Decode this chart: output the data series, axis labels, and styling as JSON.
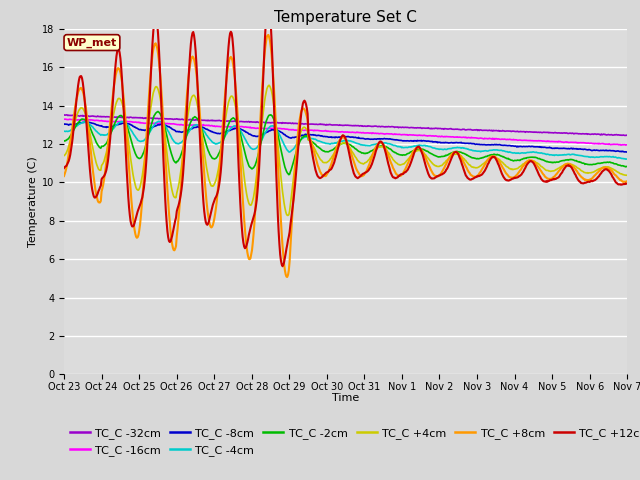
{
  "title": "Temperature Set C",
  "xlabel": "Time",
  "ylabel": "Temperature (C)",
  "ylim": [
    0,
    18
  ],
  "yticks": [
    0,
    2,
    4,
    6,
    8,
    10,
    12,
    14,
    16,
    18
  ],
  "x_labels": [
    "Oct 23",
    "Oct 24",
    "Oct 25",
    "Oct 26",
    "Oct 27",
    "Oct 28",
    "Oct 29",
    "Oct 30",
    "Oct 31",
    "Nov 1",
    "Nov 2",
    "Nov 3",
    "Nov 4",
    "Nov 5",
    "Nov 6",
    "Nov 7"
  ],
  "wp_met_label": "WP_met",
  "series_order": [
    "TC_C -32cm",
    "TC_C -16cm",
    "TC_C -8cm",
    "TC_C -4cm",
    "TC_C -2cm",
    "TC_C +4cm",
    "TC_C +8cm",
    "TC_C +12cm"
  ],
  "series": {
    "TC_C -32cm": {
      "color": "#9900CC",
      "lw": 1.2
    },
    "TC_C -16cm": {
      "color": "#FF00FF",
      "lw": 1.2
    },
    "TC_C -8cm": {
      "color": "#0000CD",
      "lw": 1.2
    },
    "TC_C -4cm": {
      "color": "#00CCCC",
      "lw": 1.2
    },
    "TC_C -2cm": {
      "color": "#00BB00",
      "lw": 1.2
    },
    "TC_C +4cm": {
      "color": "#CCCC00",
      "lw": 1.2
    },
    "TC_C +8cm": {
      "color": "#FF9900",
      "lw": 1.5
    },
    "TC_C +12cm": {
      "color": "#CC0000",
      "lw": 1.5
    }
  },
  "fig_bg": "#D8D8D8",
  "plot_bg": "#DCDCDC",
  "grid_color": "#FFFFFF",
  "title_fontsize": 11,
  "label_fontsize": 8,
  "tick_fontsize": 7,
  "legend_fontsize": 8
}
